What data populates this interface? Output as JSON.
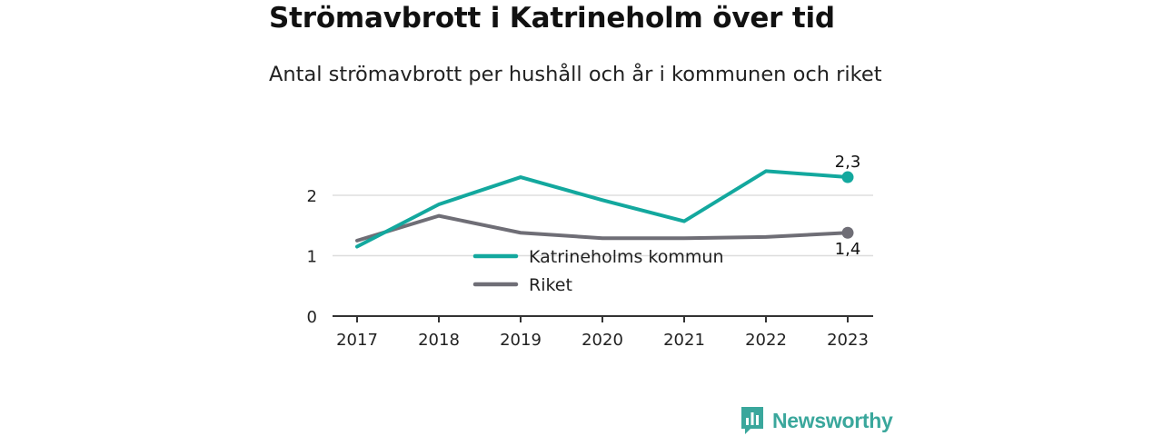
{
  "chart_data": {
    "type": "line",
    "title": "Strömavbrott i Katrineholm över tid",
    "subtitle": "Antal strömavbrott per hushåll och år i kommunen och riket",
    "x": [
      "2017",
      "2018",
      "2019",
      "2020",
      "2021",
      "2022",
      "2023"
    ],
    "ylim": [
      0,
      2.5
    ],
    "yticks": [
      "0",
      "1",
      "2"
    ],
    "grid": true,
    "legend_position": "center",
    "series": [
      {
        "name": "Katrineholms kommun",
        "color": "#13a89e",
        "values": [
          1.15,
          1.85,
          2.3,
          1.92,
          1.57,
          2.4,
          2.3
        ],
        "end_label": "2,3"
      },
      {
        "name": "Riket",
        "color": "#6f6e76",
        "values": [
          1.25,
          1.66,
          1.38,
          1.29,
          1.29,
          1.31,
          1.38
        ],
        "end_label": "1,4"
      }
    ]
  },
  "brand": {
    "name": "Newsworthy",
    "icon": "bar-chart-logo-icon",
    "color": "#3aa79c"
  }
}
